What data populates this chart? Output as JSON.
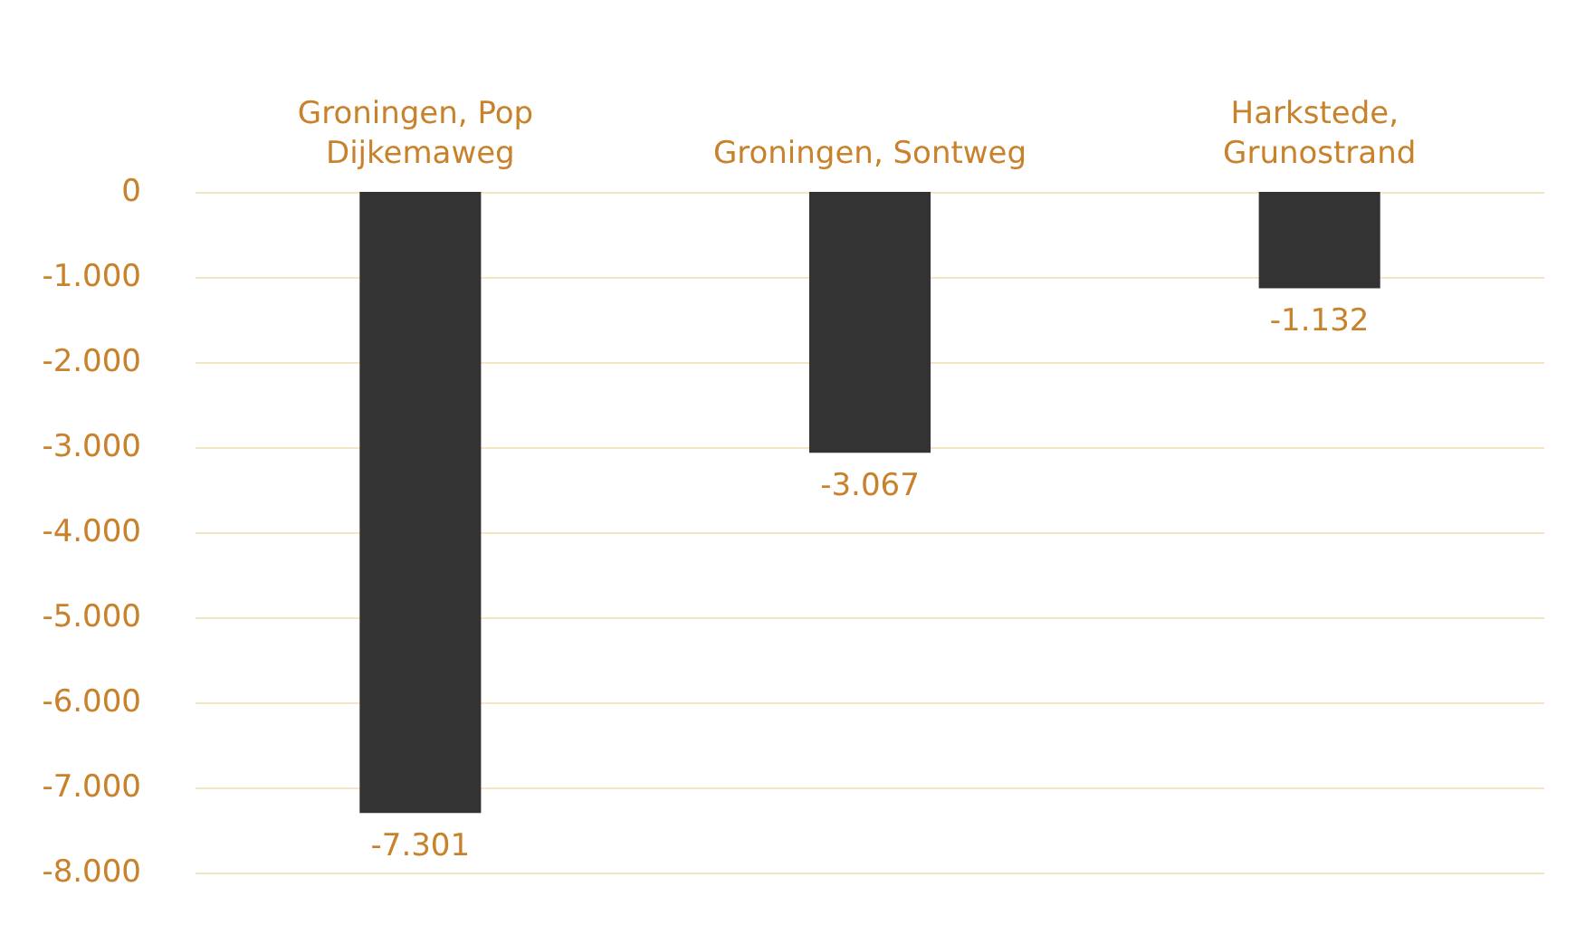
{
  "chart_data": {
    "type": "bar",
    "categories": [
      "Groningen, Pop Dijkemaweg",
      "Groningen, Sontweg",
      "Harkstede, Grunostrand"
    ],
    "values": [
      -7301,
      -3067,
      -1132
    ],
    "value_labels": [
      "-7.301",
      "-3.067",
      "-1.132"
    ],
    "color": "#333333",
    "ylim": [
      -8000,
      0
    ],
    "yticks": [
      {
        "value": 0,
        "label": "0"
      },
      {
        "value": -1000,
        "label": "-1.000"
      },
      {
        "value": -2000,
        "label": "-2.000"
      },
      {
        "value": -3000,
        "label": "-3.000"
      },
      {
        "value": -4000,
        "label": "-4.000"
      },
      {
        "value": -5000,
        "label": "-5.000"
      },
      {
        "value": -6000,
        "label": "-6.000"
      },
      {
        "value": -7000,
        "label": "-7.000"
      },
      {
        "value": -8000,
        "label": "-8.000"
      }
    ],
    "grid": "y"
  }
}
